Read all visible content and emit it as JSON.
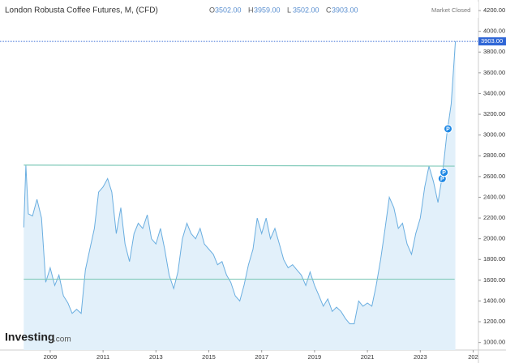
{
  "chart_data": {
    "type": "area-line",
    "title": "London Robusta Coffee Futures, M, (CFD)",
    "ohlc": [
      {
        "key": "O",
        "value": 3502,
        "label": "3502.00"
      },
      {
        "key": "H",
        "value": 3959,
        "label": "3959.00"
      },
      {
        "key": "L",
        "value": 3502,
        "label": "3502.00"
      },
      {
        "key": "C",
        "value": 3903,
        "label": "3903.00"
      }
    ],
    "status": "Market Closed",
    "brand": "Investing",
    "brand_suffix": ".com",
    "last": {
      "value": 3903,
      "label": "3903.00"
    },
    "xlim": [
      2007.1,
      2025.2
    ],
    "ylim": [
      927,
      4302
    ],
    "xticks": [
      2009,
      2011,
      2013,
      2015,
      2017,
      2019,
      2021,
      2023,
      {
        "value": 2025,
        "label": "202"
      }
    ],
    "yticks": [
      {
        "value": 1000,
        "label": "1000.00"
      },
      {
        "value": 1200,
        "label": "1200.00"
      },
      {
        "value": 1400,
        "label": "1400.00"
      },
      {
        "value": 1600,
        "label": "1600.00"
      },
      {
        "value": 1800,
        "label": "1800.00"
      },
      {
        "value": 2000,
        "label": "2000.00"
      },
      {
        "value": 2200,
        "label": "2200.00"
      },
      {
        "value": 2400,
        "label": "2400.00"
      },
      {
        "value": 2600,
        "label": "2600.00"
      },
      {
        "value": 2800,
        "label": "2800.00"
      },
      {
        "value": 3000,
        "label": "3000.00"
      },
      {
        "value": 3200,
        "label": "3200.00"
      },
      {
        "value": 3400,
        "label": "3400.00"
      },
      {
        "value": 3600,
        "label": "3600.00"
      },
      {
        "value": 3800,
        "label": "3800.00"
      },
      {
        "value": 4000,
        "label": "4000.00"
      },
      {
        "value": 4200,
        "label": "4200.00"
      }
    ],
    "trendlines": [
      {
        "x": [
          2008.0,
          2024.3
        ],
        "y": [
          2710,
          2700
        ],
        "color": "#7fc9b8"
      },
      {
        "x": [
          2008.0,
          2024.3
        ],
        "y": [
          1610,
          1610
        ],
        "color": "#7fc9b8"
      }
    ],
    "markers": [
      {
        "x": 2023.83,
        "y": 2580,
        "label": "P"
      },
      {
        "x": 2023.9,
        "y": 2640,
        "label": "P"
      },
      {
        "x": 2024.05,
        "y": 3060,
        "label": "P"
      }
    ],
    "series": [
      {
        "color": "#6aaee0",
        "fill": "#e2f0fa",
        "x": [
          2008.0,
          2008.08,
          2008.17,
          2008.33,
          2008.5,
          2008.67,
          2008.83,
          2009.0,
          2009.17,
          2009.33,
          2009.5,
          2009.67,
          2009.83,
          2010.0,
          2010.17,
          2010.33,
          2010.5,
          2010.67,
          2010.83,
          2011.0,
          2011.17,
          2011.33,
          2011.5,
          2011.67,
          2011.83,
          2012.0,
          2012.17,
          2012.33,
          2012.5,
          2012.67,
          2012.83,
          2013.0,
          2013.17,
          2013.33,
          2013.5,
          2013.67,
          2013.83,
          2014.0,
          2014.17,
          2014.33,
          2014.5,
          2014.67,
          2014.83,
          2015.0,
          2015.17,
          2015.33,
          2015.5,
          2015.67,
          2015.83,
          2016.0,
          2016.17,
          2016.33,
          2016.5,
          2016.67,
          2016.83,
          2017.0,
          2017.17,
          2017.33,
          2017.5,
          2017.67,
          2017.83,
          2018.0,
          2018.17,
          2018.33,
          2018.5,
          2018.67,
          2018.83,
          2019.0,
          2019.17,
          2019.33,
          2019.5,
          2019.67,
          2019.83,
          2020.0,
          2020.17,
          2020.33,
          2020.5,
          2020.67,
          2020.83,
          2021.0,
          2021.17,
          2021.33,
          2021.5,
          2021.67,
          2021.83,
          2022.0,
          2022.17,
          2022.33,
          2022.5,
          2022.67,
          2022.83,
          2023.0,
          2023.17,
          2023.33,
          2023.5,
          2023.67,
          2023.83,
          2024.0,
          2024.17,
          2024.33
        ],
        "values": [
          2110,
          2710,
          2240,
          2220,
          2380,
          2200,
          1580,
          1720,
          1550,
          1650,
          1450,
          1380,
          1280,
          1320,
          1280,
          1700,
          1900,
          2100,
          2450,
          2500,
          2580,
          2450,
          2050,
          2300,
          1950,
          1780,
          2050,
          2150,
          2100,
          2230,
          2000,
          1950,
          2100,
          1900,
          1650,
          1520,
          1680,
          2000,
          2150,
          2050,
          2000,
          2100,
          1950,
          1900,
          1850,
          1750,
          1780,
          1650,
          1580,
          1450,
          1400,
          1550,
          1750,
          1900,
          2200,
          2050,
          2200,
          2000,
          2100,
          1950,
          1800,
          1720,
          1750,
          1700,
          1650,
          1550,
          1680,
          1550,
          1450,
          1350,
          1420,
          1300,
          1340,
          1300,
          1230,
          1180,
          1180,
          1400,
          1350,
          1380,
          1350,
          1550,
          1800,
          2100,
          2400,
          2300,
          2100,
          2150,
          1950,
          1850,
          2050,
          2200,
          2500,
          2700,
          2550,
          2350,
          2600,
          3000,
          3300,
          3903
        ]
      }
    ]
  }
}
